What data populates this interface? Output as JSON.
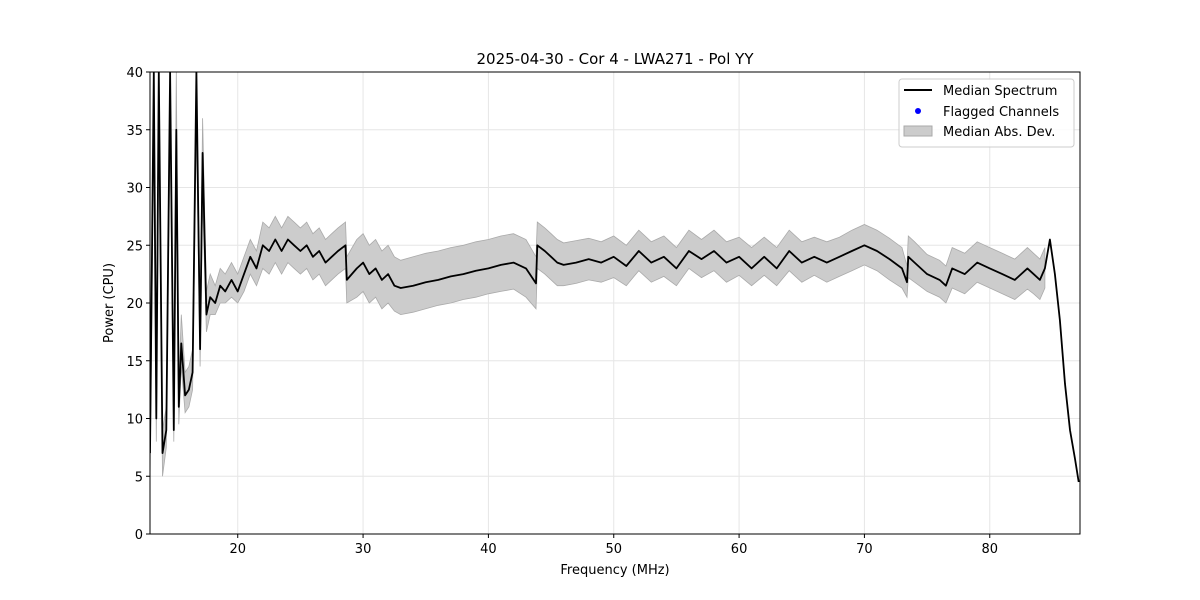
{
  "chart_data": {
    "type": "line",
    "title": "2025-04-30 - Cor 4 - LWA271 - Pol YY",
    "xlabel": "Frequency (MHz)",
    "ylabel": "Power (CPU)",
    "xlim": [
      13.0,
      87.2
    ],
    "ylim": [
      0,
      40
    ],
    "xticks": [
      20,
      30,
      40,
      50,
      60,
      70,
      80
    ],
    "yticks": [
      0,
      5,
      10,
      15,
      20,
      25,
      30,
      35,
      40
    ],
    "grid": true,
    "legend": {
      "position": "top-right",
      "entries": [
        {
          "label": "Median Spectrum",
          "kind": "line",
          "color": "#000000"
        },
        {
          "label": "Flagged Channels",
          "kind": "point",
          "color": "#0000ff"
        },
        {
          "label": "Median Abs. Dev.",
          "kind": "patch",
          "color": "#cccccc"
        }
      ]
    },
    "series": [
      {
        "name": "Median Spectrum",
        "color": "#000000",
        "x": [
          13.0,
          13.3,
          13.5,
          13.7,
          14.0,
          14.3,
          14.6,
          14.9,
          15.1,
          15.3,
          15.5,
          15.8,
          16.1,
          16.4,
          16.7,
          17.0,
          17.2,
          17.5,
          17.8,
          18.2,
          18.6,
          19.0,
          19.5,
          20.0,
          20.5,
          21.0,
          21.5,
          22.0,
          22.5,
          23.0,
          23.5,
          24.0,
          24.5,
          25.0,
          25.5,
          26.0,
          26.5,
          27.0,
          27.5,
          28.0,
          28.6,
          28.7,
          29.5,
          30.0,
          30.5,
          31.0,
          31.5,
          32.0,
          32.5,
          33.0,
          34.0,
          35.0,
          36.0,
          37.0,
          38.0,
          39.0,
          40.0,
          41.0,
          42.0,
          43.0,
          43.8,
          43.9,
          44.5,
          45.0,
          45.5,
          46.0,
          47.0,
          48.0,
          49.0,
          50.0,
          51.0,
          52.0,
          53.0,
          54.0,
          55.0,
          56.0,
          57.0,
          58.0,
          59.0,
          60.0,
          61.0,
          62.0,
          63.0,
          64.0,
          65.0,
          66.0,
          67.0,
          68.0,
          69.0,
          70.0,
          71.0,
          72.0,
          73.0,
          73.4,
          73.5,
          74.0,
          75.0,
          76.0,
          76.5,
          77.0,
          78.0,
          79.0,
          80.0,
          81.0,
          82.0,
          83.0,
          83.5,
          84.0,
          84.4,
          84.8,
          85.2,
          85.6,
          86.0,
          86.4,
          86.8,
          87.1
        ],
        "y": [
          7.0,
          40.0,
          10.0,
          40.0,
          7.0,
          9.0,
          40.0,
          9.0,
          35.0,
          11.0,
          16.5,
          12.0,
          12.5,
          14.0,
          40.0,
          16.0,
          33.0,
          19.0,
          20.5,
          20.0,
          21.5,
          21.0,
          22.0,
          21.0,
          22.5,
          24.0,
          23.0,
          25.0,
          24.5,
          25.5,
          24.5,
          25.5,
          25.0,
          24.5,
          25.0,
          24.0,
          24.5,
          23.5,
          24.0,
          24.5,
          25.0,
          22.0,
          23.0,
          23.5,
          22.5,
          23.0,
          22.0,
          22.5,
          21.5,
          21.3,
          21.5,
          21.8,
          22.0,
          22.3,
          22.5,
          22.8,
          23.0,
          23.3,
          23.5,
          23.0,
          21.7,
          25.0,
          24.5,
          24.0,
          23.5,
          23.3,
          23.5,
          23.8,
          23.5,
          24.0,
          23.2,
          24.5,
          23.5,
          24.0,
          23.0,
          24.5,
          23.8,
          24.5,
          23.5,
          24.0,
          23.0,
          24.0,
          23.0,
          24.5,
          23.5,
          24.0,
          23.5,
          24.0,
          24.5,
          25.0,
          24.5,
          23.8,
          23.0,
          21.8,
          24.0,
          23.5,
          22.5,
          22.0,
          21.5,
          23.0,
          22.5,
          23.5,
          23.0,
          22.5,
          22.0,
          23.0,
          22.5,
          22.0,
          23.0,
          25.5,
          22.5,
          18.5,
          13.0,
          9.0,
          6.5,
          4.5
        ]
      },
      {
        "name": "Median Abs. Dev.",
        "color": "#cccccc",
        "x": [
          13.0,
          13.3,
          13.5,
          13.7,
          14.0,
          14.3,
          14.6,
          14.9,
          15.1,
          15.3,
          15.5,
          15.8,
          16.1,
          16.4,
          16.7,
          17.0,
          17.2,
          17.5,
          17.8,
          18.2,
          18.6,
          19.0,
          19.5,
          20.0,
          20.5,
          21.0,
          21.5,
          22.0,
          22.5,
          23.0,
          23.5,
          24.0,
          24.5,
          25.0,
          25.5,
          26.0,
          26.5,
          27.0,
          27.5,
          28.0,
          28.6,
          28.7,
          29.5,
          30.0,
          30.5,
          31.0,
          31.5,
          32.0,
          32.5,
          33.0,
          34.0,
          35.0,
          36.0,
          37.0,
          38.0,
          39.0,
          40.0,
          41.0,
          42.0,
          43.0,
          43.8,
          43.9,
          44.5,
          45.0,
          45.5,
          46.0,
          47.0,
          48.0,
          49.0,
          50.0,
          51.0,
          52.0,
          53.0,
          54.0,
          55.0,
          56.0,
          57.0,
          58.0,
          59.0,
          60.0,
          61.0,
          62.0,
          63.0,
          64.0,
          65.0,
          66.0,
          67.0,
          68.0,
          69.0,
          70.0,
          71.0,
          72.0,
          73.0,
          73.4,
          73.5,
          74.0,
          75.0,
          76.0,
          76.5,
          77.0,
          78.0,
          79.0,
          80.0,
          81.0,
          82.0,
          83.0,
          83.5,
          84.0,
          84.4
        ],
        "lower": [
          4.5,
          35.0,
          8.0,
          35.0,
          5.0,
          7.5,
          35.0,
          8.0,
          30.0,
          9.5,
          14.5,
          10.5,
          11.0,
          12.5,
          35.0,
          14.5,
          29.0,
          17.5,
          19.0,
          19.0,
          20.0,
          20.0,
          20.5,
          20.0,
          21.0,
          22.5,
          21.5,
          23.0,
          22.5,
          23.5,
          22.5,
          23.5,
          23.0,
          22.5,
          23.0,
          22.0,
          22.5,
          21.5,
          22.0,
          22.5,
          23.0,
          20.0,
          20.5,
          21.0,
          20.0,
          20.5,
          19.5,
          20.0,
          19.3,
          19.0,
          19.2,
          19.5,
          19.8,
          20.0,
          20.3,
          20.5,
          20.8,
          21.0,
          21.2,
          20.5,
          19.5,
          23.0,
          22.5,
          22.0,
          21.5,
          21.5,
          21.7,
          22.0,
          21.8,
          22.2,
          21.5,
          22.8,
          21.8,
          22.3,
          21.5,
          23.0,
          22.2,
          22.8,
          21.8,
          22.4,
          21.5,
          22.4,
          21.5,
          22.8,
          21.8,
          22.4,
          21.8,
          22.3,
          22.8,
          23.3,
          22.8,
          22.0,
          21.3,
          20.5,
          22.2,
          21.8,
          21.0,
          20.5,
          20.0,
          21.3,
          20.8,
          21.8,
          21.3,
          20.8,
          20.3,
          21.2,
          20.8,
          20.3,
          21.3
        ],
        "upper": [
          9.5,
          40.0,
          12.0,
          40.0,
          9.0,
          11.0,
          40.0,
          11.0,
          40.0,
          13.0,
          19.0,
          14.0,
          14.5,
          16.0,
          40.0,
          18.0,
          36.0,
          21.0,
          22.5,
          21.5,
          23.0,
          22.5,
          23.5,
          22.5,
          24.0,
          25.5,
          24.5,
          27.0,
          26.5,
          27.5,
          26.5,
          27.5,
          27.0,
          26.5,
          27.0,
          26.0,
          26.5,
          25.5,
          26.0,
          26.5,
          27.0,
          24.0,
          25.5,
          26.0,
          25.0,
          25.5,
          24.5,
          25.0,
          24.0,
          23.7,
          24.0,
          24.3,
          24.5,
          24.8,
          25.0,
          25.3,
          25.5,
          25.8,
          26.0,
          25.5,
          24.0,
          27.0,
          26.5,
          26.0,
          25.5,
          25.2,
          25.4,
          25.6,
          25.3,
          25.8,
          25.0,
          26.3,
          25.3,
          25.8,
          24.8,
          26.3,
          25.5,
          26.3,
          25.3,
          25.7,
          24.8,
          25.7,
          24.8,
          26.3,
          25.3,
          25.7,
          25.3,
          25.7,
          26.3,
          26.8,
          26.3,
          25.6,
          24.8,
          23.2,
          25.8,
          25.3,
          24.2,
          23.7,
          23.2,
          24.8,
          24.3,
          25.3,
          24.8,
          24.3,
          23.8,
          24.8,
          24.3,
          23.8,
          24.8
        ]
      }
    ]
  }
}
